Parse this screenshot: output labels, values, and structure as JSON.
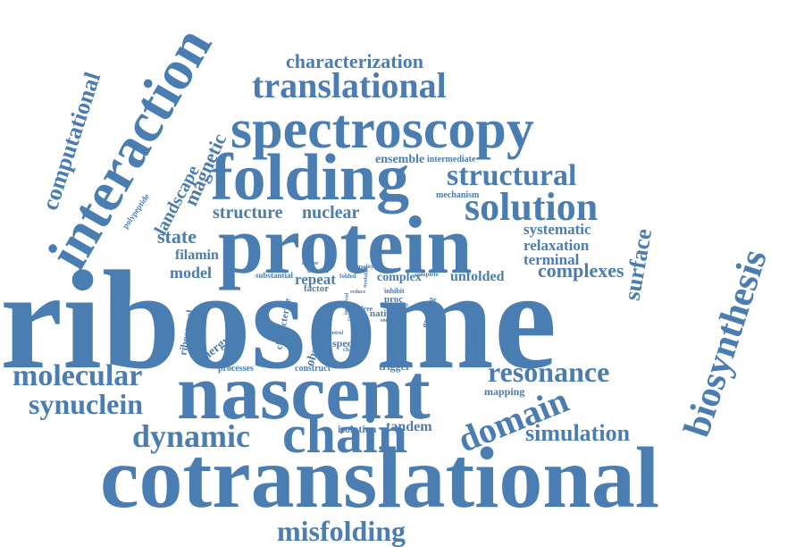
{
  "accent_color": "#4a7db1",
  "words": {
    "ribosome": "ribosome",
    "cotranslational": "cotranslational",
    "nascent": "nascent",
    "protein": "protein",
    "folding": "folding",
    "spectroscopy": "spectroscopy",
    "interaction": "interaction",
    "chain": "chain",
    "biosynthesis": "biosynthesis",
    "translational": "translational",
    "solution": "solution",
    "structural": "structural",
    "domain": "domain",
    "resonance": "resonance",
    "dynamic": "dynamic",
    "molecular": "molecular",
    "synuclein": "synuclein",
    "computational": "computational",
    "characterization": "characterization",
    "misfolding": "misfolding",
    "simulation": "simulation",
    "surface": "surface",
    "complexes": "complexes",
    "magnetic": "magnetic",
    "landscape": "landscape",
    "structure": "structure",
    "nuclear": "nuclear",
    "state": "state",
    "filamin": "filamin",
    "model": "model",
    "systematic": "systematic",
    "relaxation": "relaxation",
    "terminal": "terminal",
    "unfolded": "unfolded",
    "complex": "complex",
    "repeat": "repeat",
    "ensemble": "ensemble",
    "intermediate": "intermediate",
    "mechanism": "mechanism",
    "tandem": "tandem",
    "isolation": "isolation",
    "trigger": "trigger",
    "mapping": "mapping",
    "specific": "specific",
    "energy": "energy",
    "processes": "processes",
    "construct": "construct",
    "observed": "observed",
    "characterize": "characterize",
    "ribosomal": "ribosomal",
    "growing": "growing",
    "quantitative": "quantitative",
    "native": "native",
    "substantial": "substantial",
    "factor": "factor",
    "polypeptide": "polypeptide",
    "proc": "proc",
    "free": "free",
    "inhibit": "inhibit",
    "reduce": "reduce",
    "region": "region",
    "complete": "complete",
    "quality": "quality",
    "residue": "residue",
    "detailed": "detailed",
    "folded": "folded",
    "modulate": "modulate",
    "control": "control",
    "simple": "simple",
    "change": "change",
    "cause": "cause",
    "improved": "improved"
  }
}
